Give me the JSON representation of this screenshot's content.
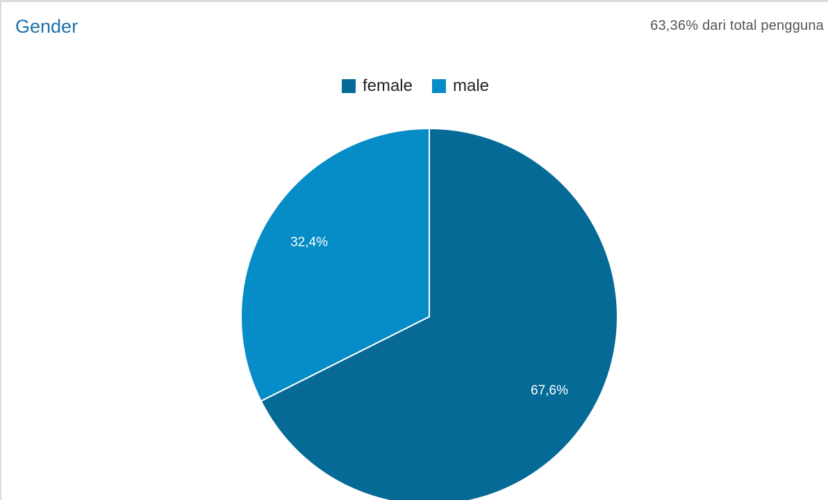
{
  "header": {
    "title": "Gender",
    "subtitle": "63,36% dari total pengguna"
  },
  "chart_data": {
    "type": "pie",
    "title": "",
    "legend_position": "top",
    "slices": [
      {
        "name": "female",
        "value": 67.6,
        "label": "67,6%",
        "color": "#066a96"
      },
      {
        "name": "male",
        "value": 32.4,
        "label": "32,4%",
        "color": "#068cc6"
      }
    ]
  }
}
